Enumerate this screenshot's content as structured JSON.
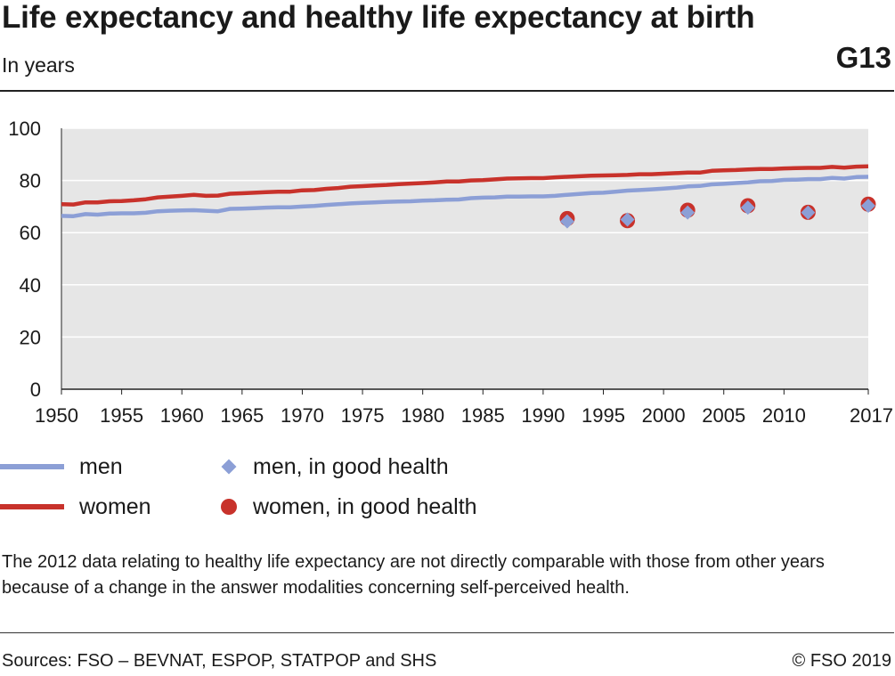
{
  "header": {
    "title": "Life expectancy and healthy life expectancy at birth",
    "subtitle": "In years",
    "code": "G13"
  },
  "legend": {
    "men": "men",
    "women": "women",
    "men_good_health": "men, in good health",
    "women_good_health": "women, in good health"
  },
  "footer": {
    "note": "The 2012 data relating to healthy life expectancy are not directly comparable with those from other years because of a change in the answer modalities concerning self-perceived health.",
    "sources": "Sources: FSO – BEVNAT, ESPOP, STATPOP and SHS",
    "copyright": "© FSO 2019"
  },
  "colors": {
    "men": "#8c9fd6",
    "women": "#c8322b",
    "plot_background": "#e6e6e6",
    "grid": "#ffffff"
  },
  "chart_data": {
    "type": "line",
    "title": "Life expectancy and healthy life expectancy at birth",
    "ylabel": "In years",
    "xlim": [
      1950,
      2017
    ],
    "ylim": [
      0,
      100
    ],
    "yticks": [
      0,
      20,
      40,
      60,
      80,
      100
    ],
    "xticks": [
      1950,
      1955,
      1960,
      1965,
      1970,
      1975,
      1980,
      1985,
      1990,
      1995,
      2000,
      2005,
      2010,
      2017
    ],
    "grid": true,
    "legend_position": "bottom",
    "x": [
      1950,
      1951,
      1952,
      1953,
      1954,
      1955,
      1956,
      1957,
      1958,
      1959,
      1960,
      1961,
      1962,
      1963,
      1964,
      1965,
      1966,
      1967,
      1968,
      1969,
      1970,
      1971,
      1972,
      1973,
      1974,
      1975,
      1976,
      1977,
      1978,
      1979,
      1980,
      1981,
      1982,
      1983,
      1984,
      1985,
      1986,
      1987,
      1988,
      1989,
      1990,
      1991,
      1992,
      1993,
      1994,
      1995,
      1996,
      1997,
      1998,
      1999,
      2000,
      2001,
      2002,
      2003,
      2004,
      2005,
      2006,
      2007,
      2008,
      2009,
      2010,
      2011,
      2012,
      2013,
      2014,
      2015,
      2016,
      2017
    ],
    "series": [
      {
        "name": "men",
        "kind": "line",
        "color": "#8c9fd6",
        "values": [
          66.4,
          66.3,
          67.1,
          66.9,
          67.3,
          67.4,
          67.4,
          67.6,
          68.2,
          68.4,
          68.5,
          68.6,
          68.4,
          68.2,
          69.1,
          69.2,
          69.4,
          69.6,
          69.7,
          69.7,
          70.0,
          70.2,
          70.6,
          70.9,
          71.2,
          71.4,
          71.6,
          71.8,
          71.9,
          72.0,
          72.3,
          72.4,
          72.6,
          72.7,
          73.2,
          73.4,
          73.5,
          73.8,
          73.8,
          73.9,
          73.9,
          74.1,
          74.5,
          74.8,
          75.2,
          75.3,
          75.7,
          76.1,
          76.3,
          76.6,
          76.9,
          77.2,
          77.7,
          77.9,
          78.5,
          78.7,
          79.0,
          79.3,
          79.7,
          79.8,
          80.2,
          80.3,
          80.5,
          80.5,
          81.0,
          80.7,
          81.3,
          81.4
        ]
      },
      {
        "name": "women",
        "kind": "line",
        "color": "#c8322b",
        "values": [
          70.9,
          70.8,
          71.6,
          71.6,
          72.0,
          72.1,
          72.4,
          72.8,
          73.5,
          73.8,
          74.1,
          74.5,
          74.1,
          74.2,
          74.9,
          75.1,
          75.3,
          75.5,
          75.7,
          75.7,
          76.2,
          76.3,
          76.8,
          77.1,
          77.6,
          77.8,
          78.1,
          78.3,
          78.6,
          78.8,
          79.0,
          79.3,
          79.6,
          79.6,
          80.0,
          80.1,
          80.4,
          80.7,
          80.8,
          80.9,
          80.9,
          81.2,
          81.4,
          81.6,
          81.8,
          81.9,
          82.0,
          82.1,
          82.4,
          82.4,
          82.6,
          82.8,
          83.0,
          83.0,
          83.7,
          83.9,
          84.0,
          84.2,
          84.4,
          84.4,
          84.6,
          84.7,
          84.8,
          84.8,
          85.2,
          84.9,
          85.3,
          85.4
        ]
      },
      {
        "name": "men, in good health",
        "kind": "diamond",
        "color": "#8c9fd6",
        "x": [
          1992,
          1997,
          2002,
          2007,
          2012,
          2017
        ],
        "values": [
          64.3,
          65.0,
          67.7,
          69.6,
          67.7,
          70.3
        ]
      },
      {
        "name": "women, in good health",
        "kind": "dot",
        "color": "#c8322b",
        "x": [
          1992,
          1997,
          2002,
          2007,
          2012,
          2017
        ],
        "values": [
          65.4,
          64.6,
          68.6,
          70.3,
          67.8,
          70.9
        ]
      }
    ]
  }
}
